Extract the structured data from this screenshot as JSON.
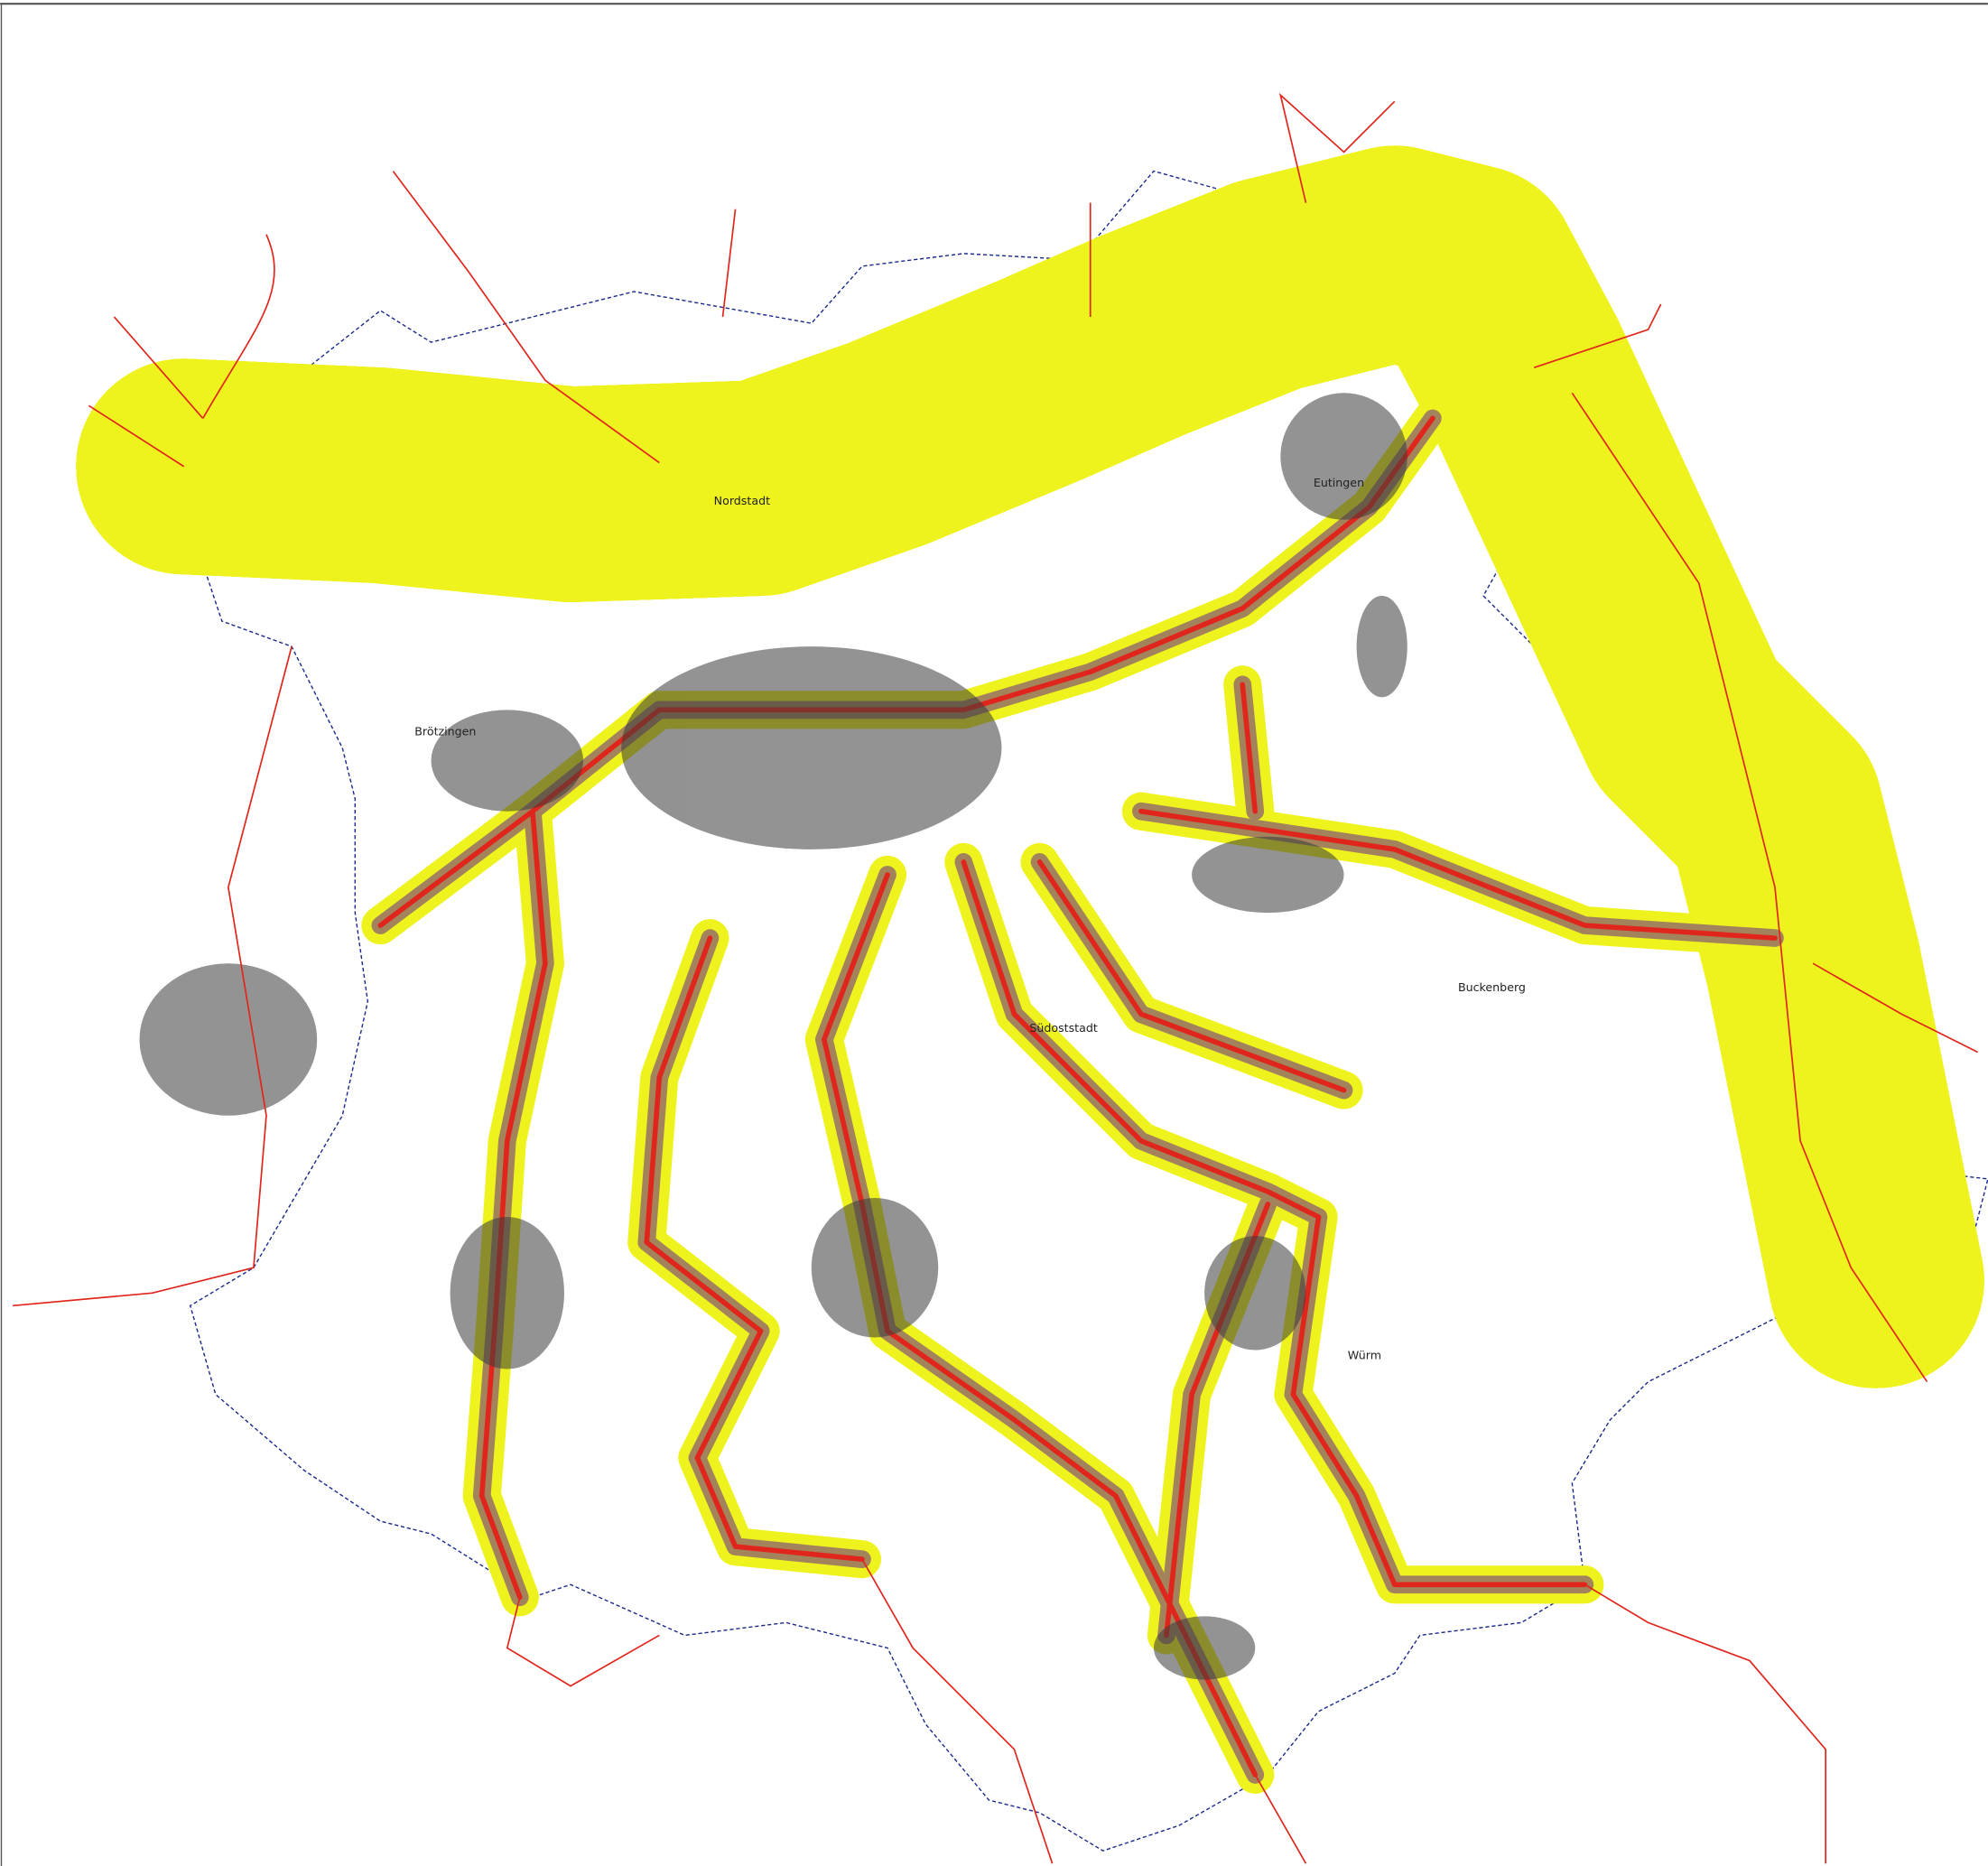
{
  "districts": [
    "Nordstadt",
    "Eutingen",
    "Brötzingen",
    "Südoststadt",
    "Buckenberg",
    "Würm"
  ]
}
